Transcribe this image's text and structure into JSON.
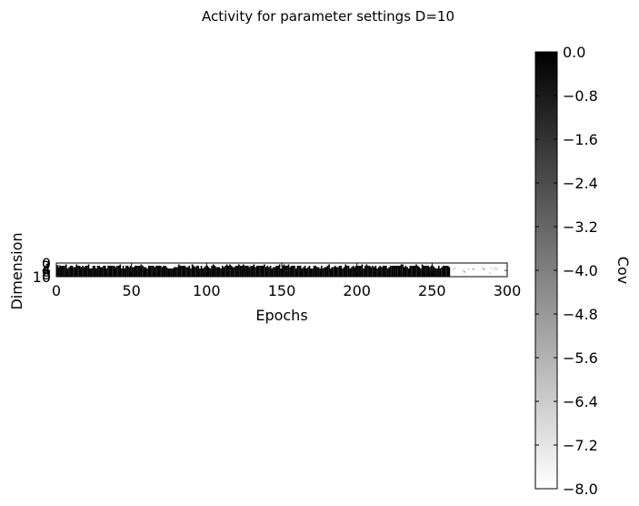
{
  "chart_data": {
    "type": "heatmap",
    "title": "Activity for parameter settings D=10",
    "xlabel": "Epochs",
    "ylabel": "Dimension",
    "xlim": [
      0,
      300
    ],
    "ylim": [
      10,
      0
    ],
    "xticks": [
      "0",
      "50",
      "100",
      "150",
      "200",
      "250",
      "300"
    ],
    "yticks": [
      "0",
      "2",
      "4",
      "6",
      "8",
      "10"
    ],
    "colorbar": {
      "label": "Cov",
      "range": [
        -8.0,
        0.0
      ],
      "ticks": [
        "0.0",
        "−0.8",
        "−1.6",
        "−2.4",
        "−3.2",
        "−4.0",
        "−4.8",
        "−5.6",
        "−6.4",
        "−7.2",
        "−8.0"
      ],
      "colormap": "gray",
      "low_color": "#ffffff",
      "high_color": "#000000"
    },
    "pattern": {
      "active_until_epoch": 262,
      "sparse_epochs": [
        262,
        300
      ],
      "active_value": 0.0,
      "inactive_value": -8.0
    }
  }
}
